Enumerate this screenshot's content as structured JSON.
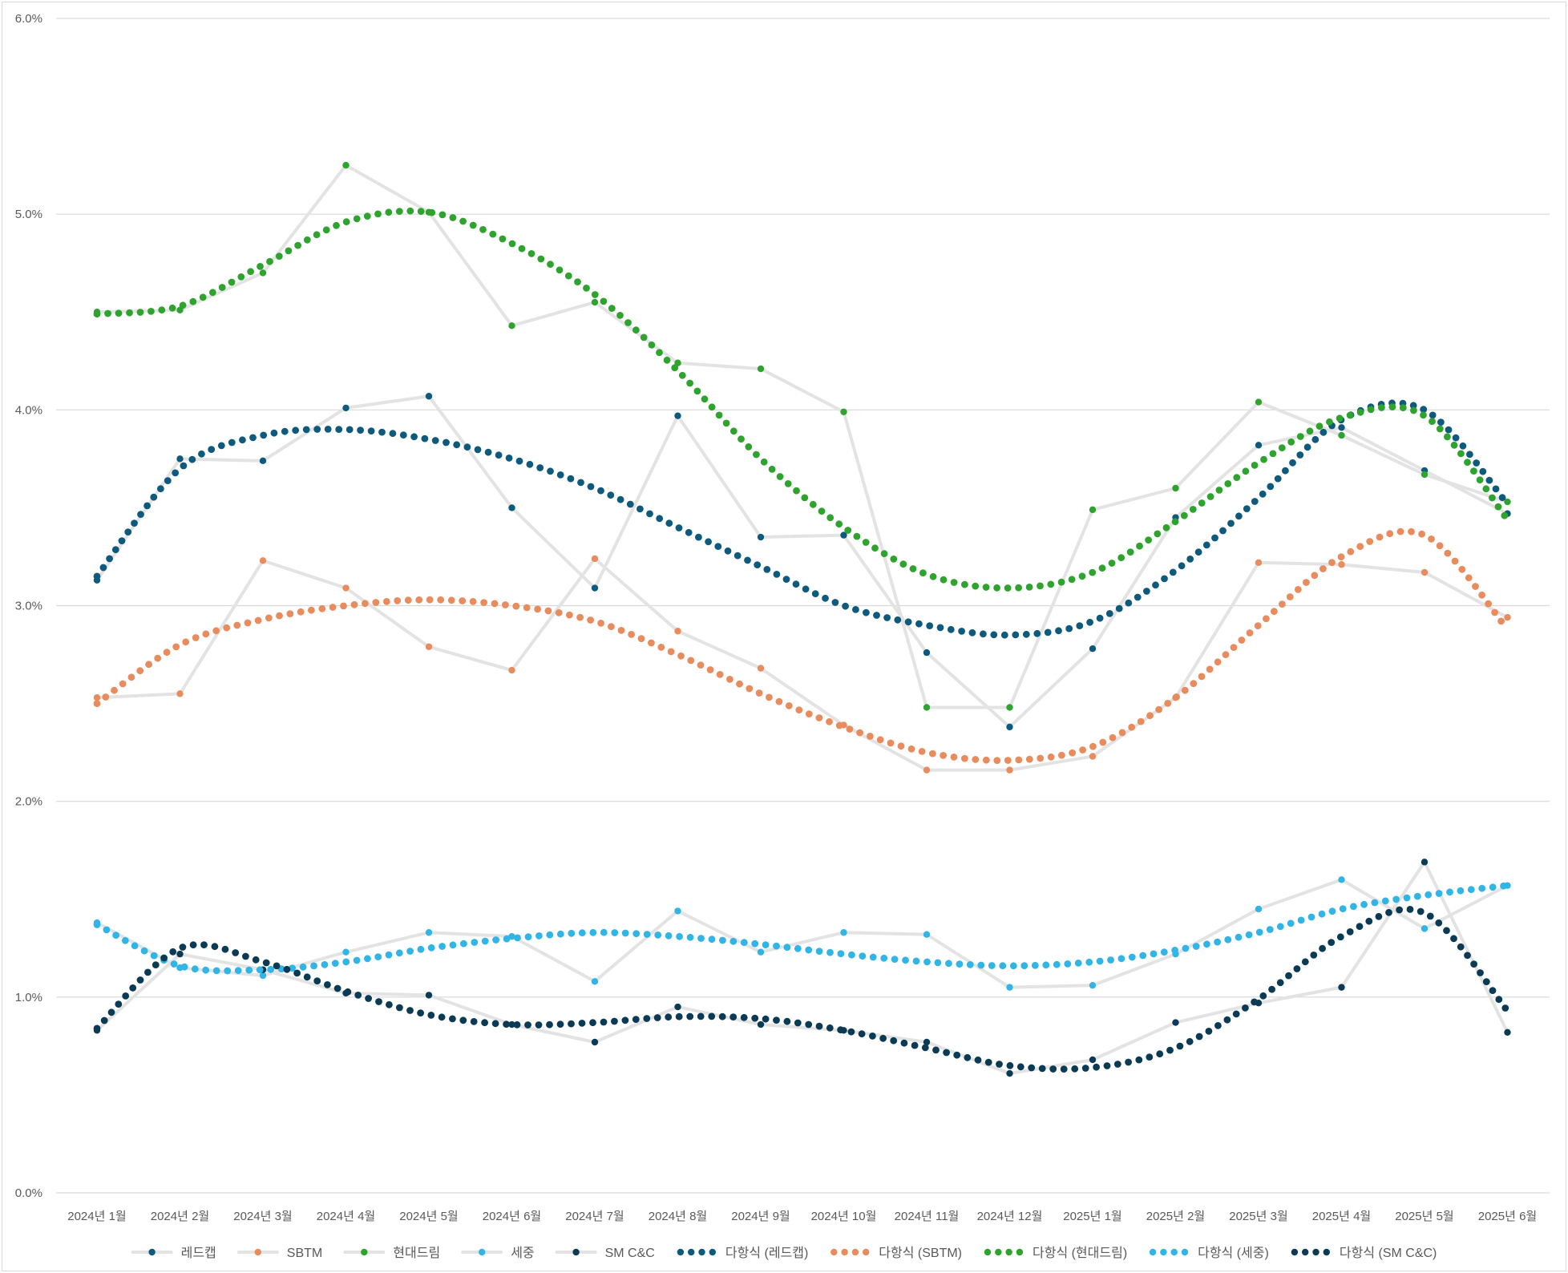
{
  "chart_data": {
    "type": "line",
    "title": "",
    "xlabel": "",
    "ylabel": "",
    "ylim": [
      0,
      0.06
    ],
    "y_tick_format": "percent_1dp",
    "y_ticks": [
      "0.0%",
      "1.0%",
      "2.0%",
      "3.0%",
      "4.0%",
      "5.0%",
      "6.0%"
    ],
    "grid": "horizontal",
    "legend_position": "bottom",
    "categories": [
      "2024년 1월",
      "2024년 2월",
      "2024년 3월",
      "2024년 4월",
      "2024년 5월",
      "2024년 6월",
      "2024년 7월",
      "2024년 8월",
      "2024년 9월",
      "2024년 10월",
      "2024년 11월",
      "2024년 12월",
      "2025년 1월",
      "2025년 2월",
      "2025년 3월",
      "2025년 4월",
      "2025년 5월",
      "2025년 6월"
    ],
    "series": [
      {
        "name": "레드캡",
        "color": "#0e5a7d",
        "values": [
          0.0313,
          0.0375,
          0.0374,
          0.0401,
          0.0407,
          0.035,
          0.0309,
          0.0397,
          0.0335,
          0.0336,
          0.0276,
          0.0238,
          0.0278,
          0.0345,
          0.0382,
          0.0391,
          0.0369,
          0.0347
        ]
      },
      {
        "name": "SBTM",
        "color": "#e88c5e",
        "values": [
          0.0253,
          0.0255,
          0.0323,
          0.0309,
          0.0279,
          0.0267,
          0.0324,
          0.0287,
          0.0268,
          0.0239,
          0.0216,
          0.0216,
          0.0223,
          0.0253,
          0.0322,
          0.0321,
          0.0317,
          0.0294
        ]
      },
      {
        "name": "현대드림",
        "color": "#2ea32e",
        "values": [
          0.045,
          0.0451,
          0.047,
          0.0525,
          0.0501,
          0.0443,
          0.0455,
          0.0424,
          0.0421,
          0.0399,
          0.0248,
          0.0248,
          0.0349,
          0.036,
          0.0404,
          0.0387,
          0.0367,
          0.0353
        ]
      },
      {
        "name": "세중",
        "color": "#31b4e6",
        "values": [
          0.0138,
          0.0115,
          0.0111,
          0.0123,
          0.0133,
          0.0131,
          0.0108,
          0.0144,
          0.0123,
          0.0133,
          0.0132,
          0.0105,
          0.0106,
          0.0122,
          0.0145,
          0.016,
          0.0135,
          0.0157
        ]
      },
      {
        "name": "SM C&C",
        "color": "#0b3a55",
        "values": [
          0.0083,
          0.0122,
          0.0114,
          0.0102,
          0.0101,
          0.0086,
          0.0077,
          0.0095,
          0.0086,
          0.0083,
          0.0077,
          0.0061,
          0.0068,
          0.0087,
          0.0097,
          0.0105,
          0.0169,
          0.0082
        ]
      },
      {
        "name": "다항식 (레드캡)",
        "color": "#0e5a7d",
        "trendline": true,
        "values": [
          0.0315,
          0.037,
          0.0387,
          0.039,
          0.0385,
          0.0375,
          0.036,
          0.034,
          0.032,
          0.03,
          0.029,
          0.0285,
          0.0292,
          0.0318,
          0.0355,
          0.0395,
          0.04,
          0.0352
        ]
      },
      {
        "name": "다항식 (SBTM)",
        "color": "#e88c5e",
        "trendline": true,
        "values": [
          0.025,
          0.028,
          0.0293,
          0.03,
          0.0303,
          0.03,
          0.0292,
          0.0275,
          0.0255,
          0.0238,
          0.0225,
          0.0221,
          0.0228,
          0.0253,
          0.029,
          0.0325,
          0.0336,
          0.0288
        ]
      },
      {
        "name": "다항식 (현대드림)",
        "color": "#2ea32e",
        "trendline": true,
        "values": [
          0.0449,
          0.0453,
          0.0474,
          0.0496,
          0.0501,
          0.0485,
          0.0459,
          0.042,
          0.0375,
          0.034,
          0.0316,
          0.0309,
          0.0317,
          0.0343,
          0.0373,
          0.0396,
          0.0397,
          0.0344
        ]
      },
      {
        "name": "다항식 (세중)",
        "color": "#31b4e6",
        "trendline": true,
        "values": [
          0.0137,
          0.0116,
          0.0114,
          0.0118,
          0.0125,
          0.013,
          0.0133,
          0.0131,
          0.0127,
          0.0122,
          0.0118,
          0.0116,
          0.0118,
          0.0124,
          0.0133,
          0.0145,
          0.0152,
          0.0157
        ]
      },
      {
        "name": "다항식 (SM C&C)",
        "color": "#0b3a55",
        "trendline": true,
        "values": [
          0.0084,
          0.0125,
          0.0118,
          0.0103,
          0.0091,
          0.0086,
          0.0087,
          0.009,
          0.0089,
          0.0083,
          0.0074,
          0.0065,
          0.0064,
          0.0074,
          0.0099,
          0.0131,
          0.0143,
          0.0093
        ]
      }
    ]
  }
}
